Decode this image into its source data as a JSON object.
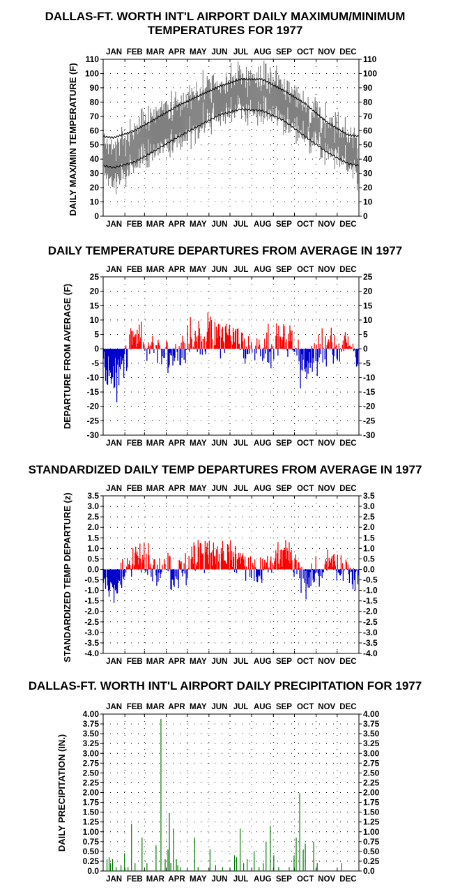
{
  "months": [
    "JAN",
    "FEB",
    "MAR",
    "APR",
    "MAY",
    "JUN",
    "JUL",
    "AUG",
    "SEP",
    "OCT",
    "NOV",
    "DEC"
  ],
  "colors": {
    "range": "#808080",
    "normal": "#000000",
    "above": "#ff0000",
    "below": "#0000cc",
    "precip": "#007a00",
    "grid": "#000000"
  },
  "chart_data": [
    {
      "type": "area",
      "title_lines": [
        "DALLAS-FT. WORTH INT'L AIRPORT DAILY MAXIMUM/MINIMUM",
        "TEMPERATURES FOR 1977"
      ],
      "ylabel": "DAILY MAX/MIN TEMPERATURE (F)",
      "ylim": [
        0,
        110
      ],
      "yticks": [
        "0",
        "10",
        "20",
        "30",
        "40",
        "50",
        "60",
        "70",
        "80",
        "90",
        "100",
        "110"
      ],
      "normal_high_monthly": [
        55,
        60,
        68,
        77,
        84,
        91,
        96,
        96,
        88,
        79,
        66,
        57
      ],
      "normal_low_monthly": [
        34,
        38,
        46,
        55,
        63,
        71,
        75,
        74,
        67,
        56,
        45,
        37
      ],
      "series": [
        {
          "name": "Daily max",
          "monthly": [
            48,
            62,
            71,
            78,
            87,
            94,
            99,
            97,
            93,
            75,
            66,
            58
          ]
        },
        {
          "name": "Daily min",
          "monthly": [
            24,
            38,
            45,
            52,
            62,
            71,
            76,
            73,
            68,
            53,
            46,
            36
          ]
        }
      ]
    },
    {
      "type": "bar",
      "title": "DAILY TEMPERATURE DEPARTURES FROM AVERAGE IN 1977",
      "ylabel": "DEPARTURE FROM AVERAGE (F)",
      "ylim": [
        -30,
        25
      ],
      "yticks": [
        "-30",
        "-25",
        "-20",
        "-15",
        "-10",
        "-5",
        "0",
        "5",
        "10",
        "15",
        "20",
        "25"
      ],
      "monthly_departure": [
        -11,
        5,
        1,
        -2,
        4,
        5,
        2,
        0,
        5,
        -6,
        2,
        1
      ]
    },
    {
      "type": "bar",
      "title": "STANDARDIZED DAILY TEMP DEPARTURES FROM AVERAGE IN 1977",
      "ylabel": "STANDARDIZED TEMP DEPARTURE (z)",
      "ylim": [
        -4,
        3.5
      ],
      "yticks": [
        "-4.0",
        "-3.5",
        "-3.0",
        "-2.5",
        "-2.0",
        "-1.5",
        "-1.0",
        "-0.5",
        "0.0",
        "0.5",
        "1.0",
        "1.5",
        "2.0",
        "2.5",
        "3.0",
        "3.5"
      ],
      "monthly_z": [
        -1.2,
        0.6,
        0.1,
        -0.2,
        0.7,
        0.9,
        0.5,
        0.0,
        1.0,
        -0.8,
        0.3,
        0.1
      ]
    },
    {
      "type": "bar",
      "title": "DALLAS-FT. WORTH INT'L AIRPORT DAILY PRECIPITATION FOR 1977",
      "ylabel": "DAILY PRECIPITATION (IN.)",
      "ylim": [
        0,
        4
      ],
      "yticks": [
        "0.0",
        "0.25",
        "0.50",
        "0.75",
        "1.00",
        "1.25",
        "1.50",
        "1.75",
        "2.00",
        "2.25",
        "2.50",
        "2.75",
        "3.00",
        "3.25",
        "3.50",
        "3.75",
        "4.00"
      ],
      "days": [
        5,
        8,
        10,
        13,
        18,
        25,
        30,
        35,
        40,
        45,
        55,
        62,
        75,
        82,
        88,
        92,
        94,
        96,
        100,
        104,
        106,
        110,
        130,
        135,
        152,
        160,
        170,
        187,
        190,
        195,
        200,
        205,
        215,
        222,
        228,
        232,
        238,
        243,
        250,
        265,
        272,
        275,
        280,
        285,
        288,
        300,
        305,
        340
      ],
      "values": [
        0.3,
        0.35,
        0.2,
        0.3,
        0.1,
        0.15,
        0.45,
        0.1,
        1.2,
        0.2,
        0.85,
        0.2,
        0.65,
        3.88,
        0.3,
        0.55,
        1.48,
        0.2,
        1.08,
        0.3,
        0.15,
        0.1,
        0.85,
        0.1,
        0.55,
        0.15,
        0.1,
        0.4,
        0.35,
        1.08,
        0.2,
        0.3,
        0.5,
        0.1,
        0.2,
        0.75,
        1.15,
        0.4,
        0.1,
        0.1,
        0.4,
        0.85,
        1.98,
        0.55,
        0.7,
        0.75,
        0.2,
        0.2
      ]
    }
  ]
}
